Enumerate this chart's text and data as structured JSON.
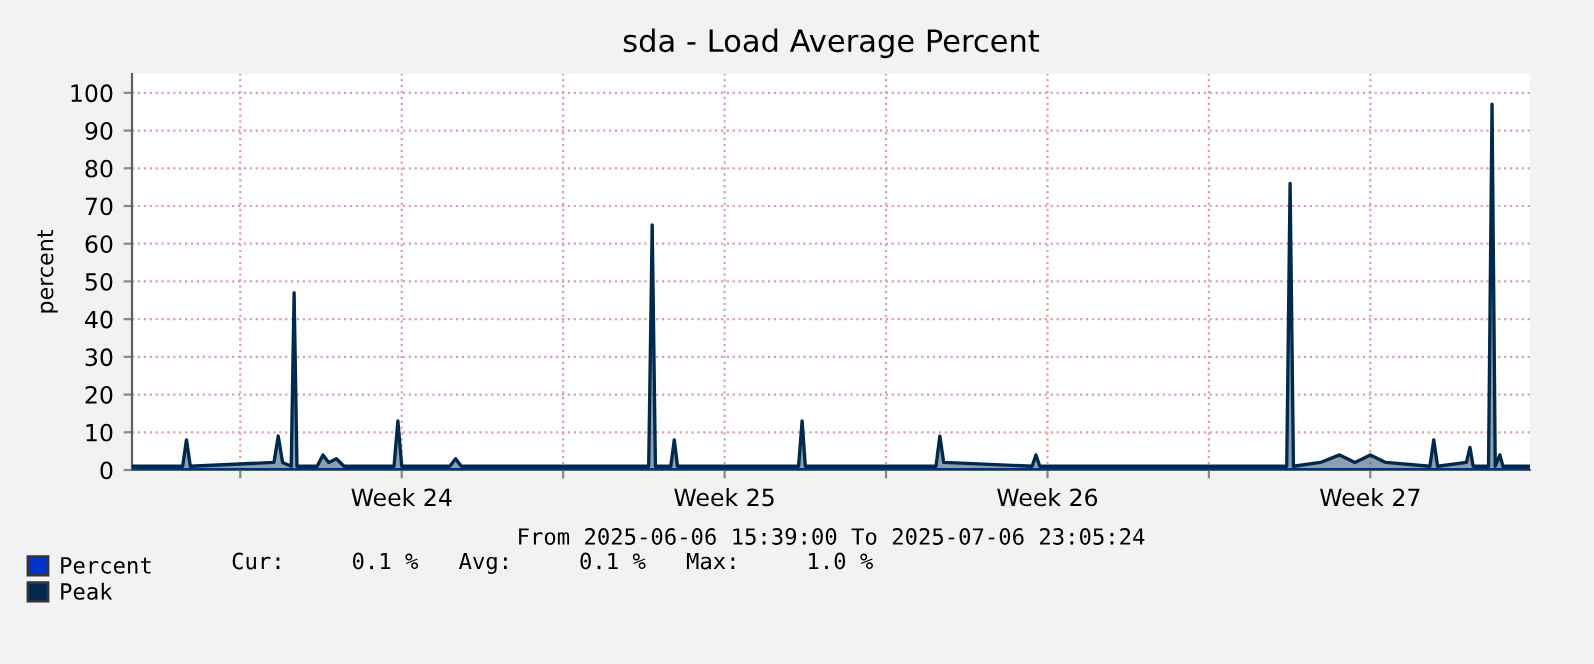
{
  "chart_data": {
    "type": "area",
    "title": "sda - Load Average Percent",
    "ylabel": "percent",
    "xlabel": "From 2025-06-06 15:39:00 To 2025-07-06 23:05:24",
    "annotations": [
      "Cur:     0.1 %   Avg:     0.1 %   Max:     1.0 %"
    ],
    "xlim": [
      "2025-06-06T15:39",
      "2025-07-06T23:05"
    ],
    "xticks": [
      {
        "value": "2025-06-09",
        "label": null
      },
      {
        "value": "2025-06-12T12:00",
        "label": "Week 24"
      },
      {
        "value": "2025-06-16",
        "label": null
      },
      {
        "value": "2025-06-19T12:00",
        "label": "Week 25"
      },
      {
        "value": "2025-06-23",
        "label": null
      },
      {
        "value": "2025-06-26T12:00",
        "label": "Week 26"
      },
      {
        "value": "2025-06-30",
        "label": null
      },
      {
        "value": "2025-07-03T12:00",
        "label": "Week 27"
      }
    ],
    "ylim": [
      0,
      105
    ],
    "yticks": [
      0,
      10,
      20,
      30,
      40,
      50,
      60,
      70,
      80,
      90,
      100
    ],
    "grid": true,
    "legend": "bottom left",
    "series": [
      {
        "name": "Percent",
        "color": "#0033cc",
        "x": [
          "2025-06-06T15:39",
          "2025-06-20T00:00",
          "2025-07-06T23:05"
        ],
        "values": [
          0.1,
          0.1,
          0.1
        ]
      },
      {
        "name": "Peak",
        "color": "#002a4d",
        "x": [
          "2025-06-06T16:00",
          "2025-06-07T18:00",
          "2025-06-07T20:00",
          "2025-06-07T22:00",
          "2025-06-09T17:30",
          "2025-06-09T19:45",
          "2025-06-09T22:00",
          "2025-06-10T02:30",
          "2025-06-10T04:00",
          "2025-06-10T05:30",
          "2025-06-10T16:00",
          "2025-06-10T19:00",
          "2025-06-10T22:00",
          "2025-06-11T02:00",
          "2025-06-11T06:00",
          "2025-06-12T08:00",
          "2025-06-12T10:00",
          "2025-06-12T12:00",
          "2025-06-13T13:00",
          "2025-06-13T16:00",
          "2025-06-13T19:00",
          "2025-06-17T20:30",
          "2025-06-17T22:20",
          "2025-06-18T00:00",
          "2025-06-18T08:00",
          "2025-06-18T09:50",
          "2025-06-18T11:30",
          "2025-06-21T02:30",
          "2025-06-21T04:20",
          "2025-06-21T06:00",
          "2025-06-24T02:00",
          "2025-06-24T04:00",
          "2025-06-24T06:00",
          "2025-06-26T04:00",
          "2025-06-26T06:00",
          "2025-06-26T08:00",
          "2025-07-01T16:30",
          "2025-07-01T18:15",
          "2025-07-01T20:00",
          "2025-07-02T10:00",
          "2025-07-02T20:00",
          "2025-07-03T04:00",
          "2025-07-03T12:00",
          "2025-07-03T20:00",
          "2025-07-04T19:00",
          "2025-07-04T21:00",
          "2025-07-04T23:00",
          "2025-07-05T14:00",
          "2025-07-05T15:50",
          "2025-07-05T17:30",
          "2025-07-06T01:30",
          "2025-07-06T03:20",
          "2025-07-06T05:00",
          "2025-07-06T07:25",
          "2025-07-06T09:00",
          "2025-07-06T23:05"
        ],
        "values": [
          1,
          1,
          8,
          1,
          2,
          9,
          2,
          1,
          47,
          1,
          1,
          4,
          2,
          3,
          1,
          1,
          13,
          1,
          1,
          3,
          1,
          1,
          65,
          1,
          1,
          8,
          1,
          1,
          13,
          1,
          1,
          9,
          2,
          1,
          4,
          1,
          1,
          76,
          1,
          2,
          4,
          2,
          4,
          2,
          1,
          8,
          1,
          2,
          6,
          1,
          1,
          97,
          1,
          4,
          1,
          1
        ]
      }
    ]
  }
}
